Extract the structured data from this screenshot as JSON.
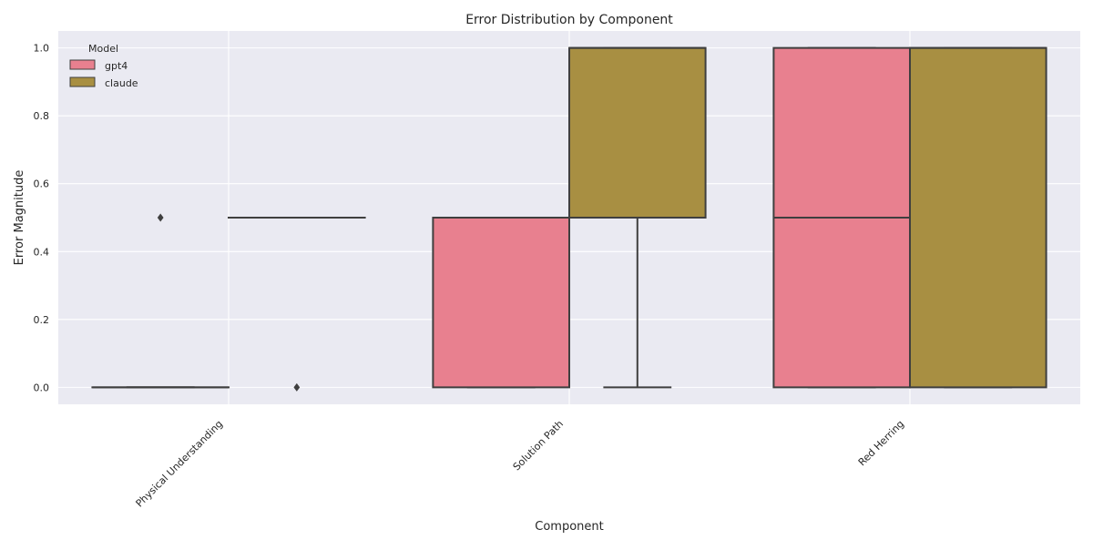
{
  "chart_data": {
    "type": "box",
    "title": "Error Distribution by Component",
    "xlabel": "Component",
    "ylabel": "Error Magnitude",
    "categories": [
      "Physical Understanding",
      "Solution Path",
      "Red Herring"
    ],
    "ylim": [
      -0.05,
      1.05
    ],
    "yticks": [
      0.0,
      0.2,
      0.4,
      0.6,
      0.8,
      1.0
    ],
    "ytick_labels": [
      "0.0",
      "0.2",
      "0.4",
      "0.6",
      "0.8",
      "1.0"
    ],
    "grid": true,
    "legend": {
      "title": "Model",
      "placement": "top-left"
    },
    "series": [
      {
        "name": "gpt4",
        "color": "#e8808f",
        "boxes": [
          {
            "category": "Physical Understanding",
            "whisker_low": 0.0,
            "q1": 0.0,
            "median": 0.0,
            "q3": 0.0,
            "whisker_high": 0.0,
            "outliers": [
              0.5
            ]
          },
          {
            "category": "Solution Path",
            "whisker_low": 0.0,
            "q1": 0.0,
            "median": 0.5,
            "q3": 0.5,
            "whisker_high": 0.5,
            "outliers": []
          },
          {
            "category": "Red Herring",
            "whisker_low": 0.0,
            "q1": 0.0,
            "median": 0.5,
            "q3": 1.0,
            "whisker_high": 1.0,
            "outliers": []
          }
        ]
      },
      {
        "name": "claude",
        "color": "#a88f42",
        "boxes": [
          {
            "category": "Physical Understanding",
            "whisker_low": 0.5,
            "q1": 0.5,
            "median": 0.5,
            "q3": 0.5,
            "whisker_high": 0.5,
            "outliers": [
              0.0
            ]
          },
          {
            "category": "Solution Path",
            "whisker_low": 0.0,
            "q1": 0.5,
            "median": 1.0,
            "q3": 1.0,
            "whisker_high": 1.0,
            "outliers": []
          },
          {
            "category": "Red Herring",
            "whisker_low": 0.0,
            "q1": 0.0,
            "median": 1.0,
            "q3": 1.0,
            "whisker_high": 1.0,
            "outliers": []
          }
        ]
      }
    ]
  }
}
